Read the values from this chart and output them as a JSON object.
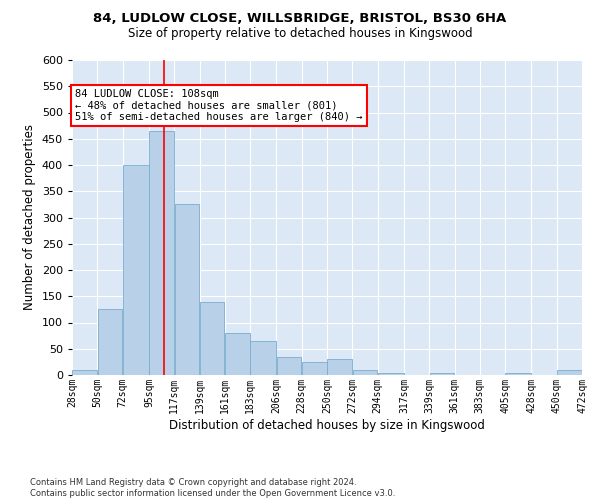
{
  "title_line1": "84, LUDLOW CLOSE, WILLSBRIDGE, BRISTOL, BS30 6HA",
  "title_line2": "Size of property relative to detached houses in Kingswood",
  "xlabel": "Distribution of detached houses by size in Kingswood",
  "ylabel": "Number of detached properties",
  "bar_color": "#b8d0e8",
  "bar_edge_color": "#7aadd0",
  "vline_color": "red",
  "vline_x": 108,
  "annotation_text": "84 LUDLOW CLOSE: 108sqm\n← 48% of detached houses are smaller (801)\n51% of semi-detached houses are larger (840) →",
  "annotation_box_color": "white",
  "annotation_box_edge": "red",
  "bins": [
    28,
    50,
    72,
    95,
    117,
    139,
    161,
    183,
    206,
    228,
    250,
    272,
    294,
    317,
    339,
    361,
    383,
    405,
    428,
    450,
    472
  ],
  "bar_heights": [
    10,
    125,
    400,
    465,
    325,
    140,
    80,
    65,
    35,
    25,
    30,
    10,
    4,
    0,
    4,
    0,
    0,
    4,
    0,
    10
  ],
  "ylim": [
    0,
    600
  ],
  "yticks": [
    0,
    50,
    100,
    150,
    200,
    250,
    300,
    350,
    400,
    450,
    500,
    550,
    600
  ],
  "background_color": "#dce8f5",
  "grid_color": "white",
  "footer_text": "Contains HM Land Registry data © Crown copyright and database right 2024.\nContains public sector information licensed under the Open Government Licence v3.0."
}
